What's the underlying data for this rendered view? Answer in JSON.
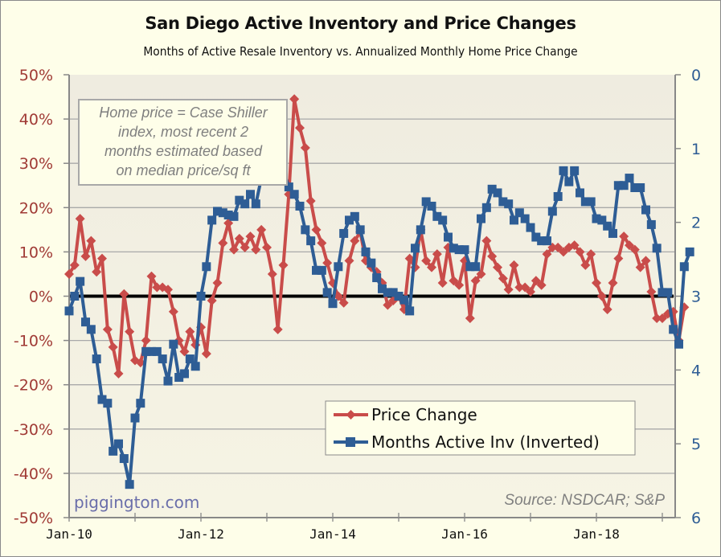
{
  "chart_data": {
    "type": "line",
    "title": "San Diego Active Inventory and Price Changes",
    "subtitle": "Months of Active Resale Inventory vs. Annualized Monthly Home Price Change",
    "x_start": "Jan-10",
    "x_unit": "month",
    "xtick_labels": [
      "Jan-10",
      "Jan-12",
      "Jan-14",
      "Jan-16",
      "Jan-18"
    ],
    "left_axis": {
      "label": "",
      "ylim": [
        -50,
        50
      ],
      "ticks": [
        50,
        40,
        30,
        20,
        10,
        0,
        -10,
        -20,
        -30,
        -40,
        -50
      ],
      "tick_labels": [
        "50%",
        "40%",
        "30%",
        "20%",
        "10%",
        "0%",
        "-10%",
        "-20%",
        "-30%",
        "-40%",
        "-50%"
      ],
      "color": "#a03a35"
    },
    "right_axis": {
      "label": "",
      "ylim": [
        0,
        6
      ],
      "inverted": true,
      "ticks": [
        0,
        1,
        2,
        3,
        4,
        5,
        6
      ],
      "tick_labels": [
        "0",
        "1",
        "2",
        "3",
        "4",
        "5",
        "6"
      ],
      "color": "#2e5d95"
    },
    "grid": true,
    "zero_line": true,
    "legend_position": "bottom-center",
    "series": [
      {
        "name": "Price Change",
        "axis": "left",
        "color": "#c94c4a",
        "marker": "diamond",
        "values": [
          5,
          7,
          17.5,
          9,
          12.5,
          5.5,
          8.5,
          -7.5,
          -11.5,
          -17.5,
          0.5,
          -8,
          -14.5,
          -15,
          -10,
          4.5,
          2,
          2,
          1.5,
          -3.5,
          -10,
          -12.5,
          -8,
          -11,
          -7,
          -13,
          -1,
          3,
          12,
          16.5,
          10.5,
          13,
          11,
          13.5,
          10.5,
          15,
          11,
          5,
          -7.5,
          7,
          23,
          44.5,
          38,
          33.5,
          21.5,
          15,
          12,
          7.5,
          3,
          0,
          -1.5,
          8,
          12.5,
          14.5,
          8,
          6.5,
          5.5,
          3,
          -2,
          -1,
          0,
          -3,
          8.5,
          6.5,
          15,
          8,
          6.5,
          9.5,
          3,
          11,
          3.5,
          2.5,
          8,
          -5,
          3.5,
          5,
          12.5,
          9,
          6.5,
          4,
          1.5,
          7,
          2,
          2,
          1,
          3.5,
          2.5,
          9.5,
          11,
          11,
          10,
          11,
          11.5,
          10,
          7,
          9.5,
          3,
          0,
          -3,
          3,
          8.5,
          13.5,
          11.5,
          10.5,
          6.5,
          8,
          1,
          -5,
          -5,
          -4,
          -3.5,
          -10,
          -2.5
        ]
      },
      {
        "name": "Months Active Inv (Inverted)",
        "axis": "right",
        "color": "#2e5d95",
        "marker": "square",
        "values": [
          3.2,
          3.0,
          2.8,
          3.35,
          3.45,
          3.85,
          4.4,
          4.45,
          5.1,
          5.0,
          5.2,
          5.55,
          4.65,
          4.45,
          3.75,
          3.75,
          3.75,
          3.85,
          4.15,
          3.65,
          4.1,
          4.05,
          3.85,
          3.95,
          3.0,
          2.6,
          1.97,
          1.85,
          1.87,
          1.9,
          1.92,
          1.7,
          1.75,
          1.62,
          1.75,
          1.4,
          1.3,
          1.25,
          1.25,
          1.3,
          1.52,
          1.62,
          1.78,
          2.1,
          2.25,
          2.65,
          2.65,
          2.95,
          3.1,
          2.6,
          2.15,
          1.97,
          1.92,
          2.1,
          2.4,
          2.55,
          2.75,
          2.9,
          2.95,
          2.95,
          3.0,
          3.05,
          3.2,
          2.35,
          2.1,
          1.72,
          1.78,
          1.92,
          1.97,
          2.2,
          2.35,
          2.37,
          2.37,
          2.6,
          2.6,
          1.95,
          1.8,
          1.55,
          1.6,
          1.72,
          1.75,
          1.97,
          1.87,
          1.95,
          2.07,
          2.2,
          2.25,
          2.25,
          1.85,
          1.65,
          1.3,
          1.45,
          1.3,
          1.6,
          1.72,
          1.72,
          1.95,
          1.97,
          2.05,
          2.15,
          1.5,
          1.5,
          1.4,
          1.53,
          1.53,
          1.83,
          2.03,
          2.35,
          2.95,
          2.95,
          3.45,
          3.65,
          2.6,
          2.4
        ]
      }
    ],
    "annotations": {
      "note_lines": [
        "Home price = Case Shiller",
        "index, most recent 2",
        "months estimated based",
        "on median price/sq ft"
      ],
      "source": "Source: NSDCAR; S&P",
      "watermark": "piggington.com"
    }
  }
}
